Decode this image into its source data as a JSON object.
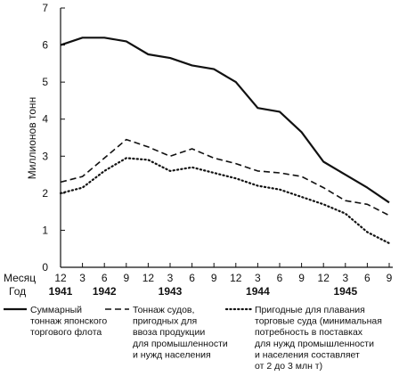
{
  "chart_data": {
    "type": "line",
    "ylabel": "Миллионов тонн",
    "xlabel_month": "Месяц",
    "xlabel_year": "Год",
    "ylim": [
      0,
      7
    ],
    "y_ticks": [
      "0",
      "1",
      "2",
      "3",
      "4",
      "5",
      "6",
      "7"
    ],
    "x_month_labels": [
      "12",
      "3",
      "6",
      "9",
      "12",
      "3",
      "6",
      "9",
      "12",
      "3",
      "6",
      "9",
      "12",
      "3",
      "6",
      "9"
    ],
    "x_year_labels": [
      {
        "label": "1941",
        "index": 0
      },
      {
        "label": "1942",
        "index": 2
      },
      {
        "label": "1943",
        "index": 5
      },
      {
        "label": "1944",
        "index": 9
      },
      {
        "label": "1945",
        "index": 13
      }
    ],
    "series": [
      {
        "name": "Суммарный тоннаж японского торгового флота",
        "style": "solid",
        "values": [
          6.0,
          6.2,
          6.2,
          6.1,
          5.75,
          5.65,
          5.45,
          5.35,
          5.0,
          4.3,
          4.2,
          3.65,
          2.85,
          2.5,
          2.15,
          1.75
        ]
      },
      {
        "name": "Тоннаж судов, пригодных для ввоза продукции для промышленности и нужд населения",
        "style": "dashed",
        "values": [
          2.3,
          2.45,
          2.95,
          3.45,
          3.25,
          3.0,
          3.2,
          2.95,
          2.8,
          2.6,
          2.55,
          2.45,
          2.15,
          1.8,
          1.7,
          1.4
        ]
      },
      {
        "name": "Пригодные для плавания торговые суда (минимальная потребность в поставках для нужд промышленности и населения составляет от 2 до 3 млн т)",
        "style": "dotted",
        "values": [
          2.0,
          2.15,
          2.6,
          2.95,
          2.9,
          2.6,
          2.7,
          2.55,
          2.4,
          2.2,
          2.1,
          1.9,
          1.7,
          1.45,
          0.95,
          0.65
        ]
      }
    ],
    "legend": [
      {
        "style": "solid",
        "lines": [
          "Суммарный",
          "тоннаж японского",
          "торгового флота"
        ]
      },
      {
        "style": "dashed",
        "lines": [
          "Тоннаж судов,",
          "пригодных для",
          "ввоза продукции",
          "для промышленности",
          "и нужд населения"
        ]
      },
      {
        "style": "dotted",
        "lines": [
          "Пригодные для плавания",
          "торговые суда (минимальная",
          "потребность в поставках",
          "для нужд промышленности",
          "и населения составляет",
          "от 2 до 3 млн т)"
        ]
      }
    ],
    "legend_position": "bottom",
    "grid": false
  },
  "colors": {
    "line": "#111111",
    "axis": "#111111",
    "background": "#ffffff"
  }
}
